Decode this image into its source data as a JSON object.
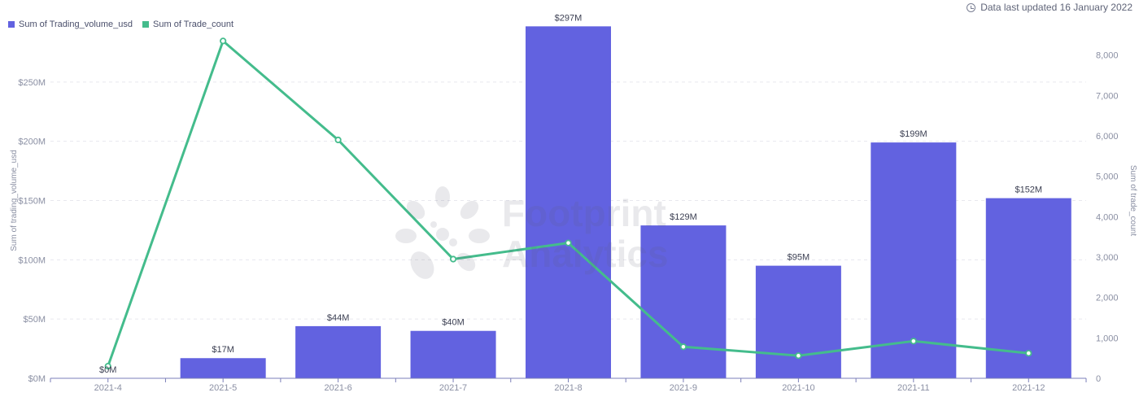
{
  "header": {
    "updated_text": "Data last updated 16 January 2022",
    "updated_icon": "clock-icon"
  },
  "watermark": {
    "line1": "Footprint",
    "line2": "Analytics"
  },
  "colors": {
    "bar": "#6262e0",
    "line": "#44bc8c",
    "grid": "#e8e8ee",
    "axis_text": "#8a8fa3"
  },
  "chart_data": {
    "type": "bar",
    "categories": [
      "2021-4",
      "2021-5",
      "2021-6",
      "2021-7",
      "2021-8",
      "2021-9",
      "2021-10",
      "2021-11",
      "2021-12"
    ],
    "series": [
      {
        "name": "Sum of Trading_volume_usd",
        "type": "bar",
        "axis": "left",
        "values": [
          0,
          17,
          44,
          40,
          297,
          129,
          95,
          199,
          152
        ],
        "labels": [
          "$0M",
          "$17M",
          "$44M",
          "$40M",
          "$297M",
          "$129M",
          "$95M",
          "$199M",
          "$152M"
        ]
      },
      {
        "name": "Sum of Trade_count",
        "type": "line",
        "axis": "right",
        "values": [
          300,
          8350,
          5900,
          2950,
          3350,
          780,
          560,
          920,
          620
        ]
      }
    ],
    "ylabel": "Sum of trading_volume_usd",
    "ylabel_right": "Sum of trade_count",
    "ylim": [
      0,
      300
    ],
    "yticks": [
      0,
      50,
      100,
      150,
      200,
      250
    ],
    "ytick_labels": [
      "$0M",
      "$50M",
      "$100M",
      "$150M",
      "$200M",
      "$250M"
    ],
    "ylim_right": [
      0,
      8800
    ],
    "yticks_right": [
      0,
      1000,
      2000,
      3000,
      4000,
      5000,
      6000,
      7000,
      8000
    ],
    "ytick_labels_right": [
      "0",
      "1,000",
      "2,000",
      "3,000",
      "4,000",
      "5,000",
      "6,000",
      "7,000",
      "8,000"
    ],
    "grid": true,
    "legend": "top-left"
  }
}
